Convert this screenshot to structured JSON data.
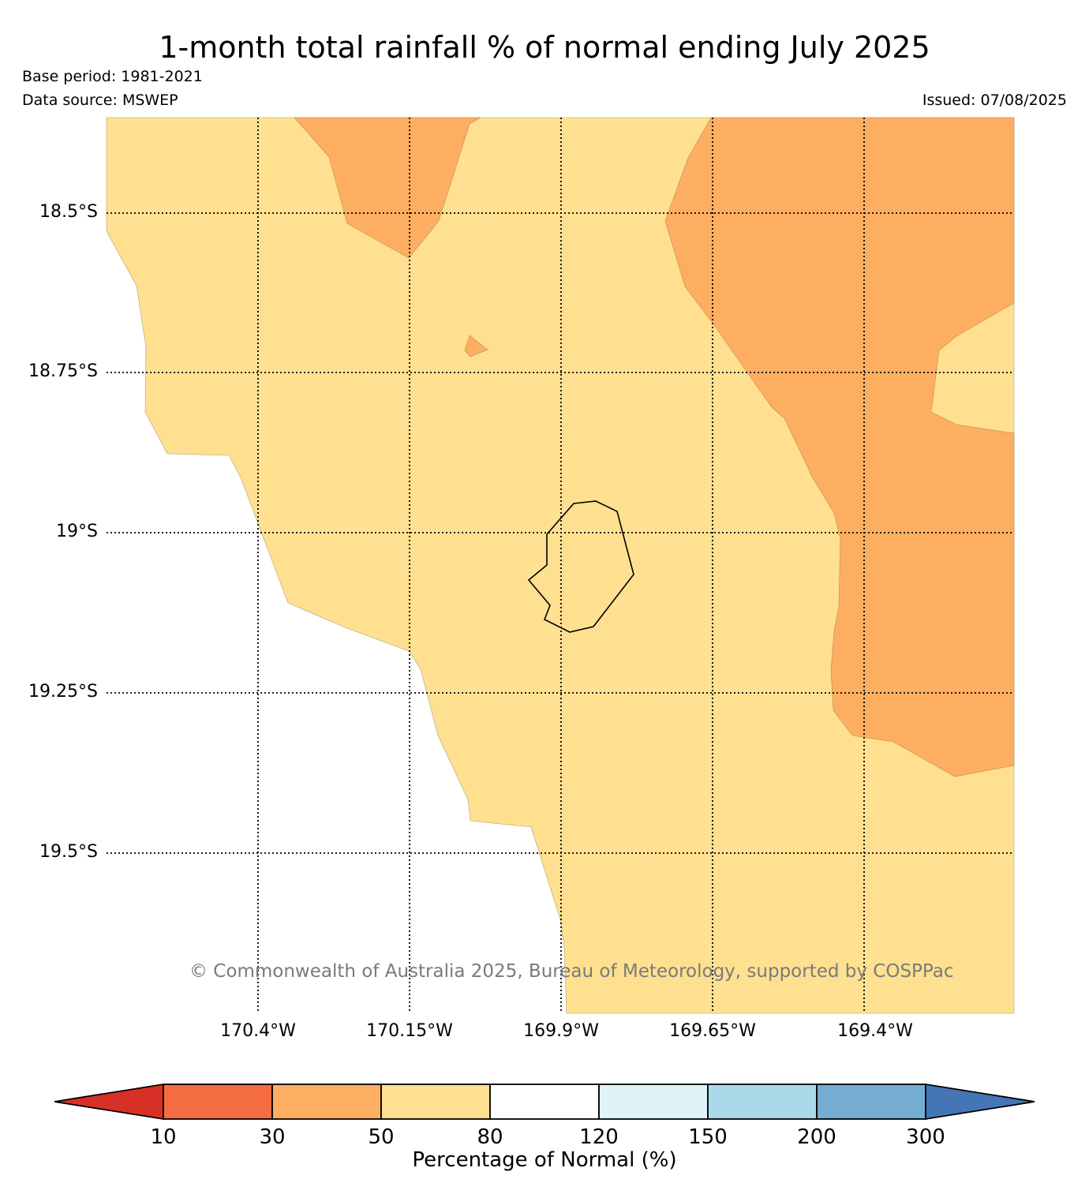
{
  "header": {
    "title": "1-month total rainfall % of normal ending July 2025",
    "base_period": "Base period: 1981-2021",
    "data_source": "Data source: MSWEP",
    "issued": "Issued: 07/08/2025"
  },
  "map": {
    "latitude_labels": [
      "18.5°S",
      "18.75°S",
      "19°S",
      "19.25°S",
      "19.5°S"
    ],
    "longitude_labels": [
      "170.4°W",
      "170.15°W",
      "169.9°W",
      "169.65°W",
      "169.4°W"
    ],
    "copyright": "© Commonwealth of Australia 2025, Bureau of Meteorology, supported by COSPPac",
    "region_colors": {
      "50_80": "#fee090",
      "30_50": "#fdae61",
      "no_data": "#ffffff"
    }
  },
  "colorbar": {
    "title": "Percentage of Normal (%)",
    "ticks": [
      "10",
      "30",
      "50",
      "80",
      "120",
      "150",
      "200",
      "300"
    ],
    "colors": [
      "#d73027",
      "#f46d43",
      "#fdae61",
      "#fee090",
      "#ffffff",
      "#e0f3f8",
      "#abd9e9",
      "#74add1",
      "#4575b4"
    ]
  }
}
